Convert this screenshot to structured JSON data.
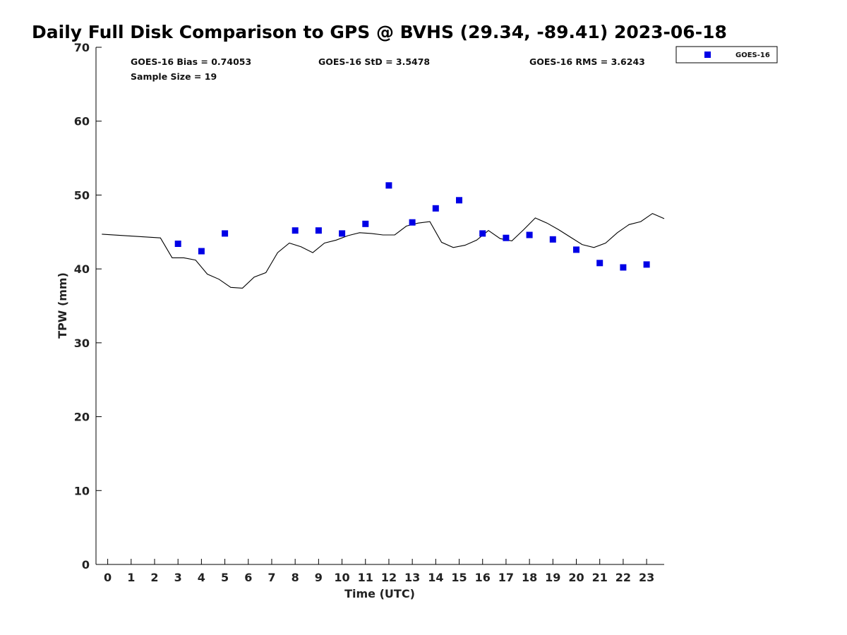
{
  "chart_data": {
    "type": "scatter",
    "title": "Daily Full Disk Comparison to GPS @ BVHS (29.34, -89.41) 2023-06-18",
    "xlabel": "Time (UTC)",
    "ylabel": "TPW (mm)",
    "xlim": [
      -0.5,
      23.75
    ],
    "ylim": [
      0,
      70
    ],
    "x_ticks": [
      "0",
      "1",
      "2",
      "3",
      "4",
      "5",
      "6",
      "7",
      "8",
      "9",
      "10",
      "11",
      "12",
      "13",
      "14",
      "15",
      "16",
      "17",
      "18",
      "19",
      "20",
      "21",
      "22",
      "23"
    ],
    "y_ticks": [
      "0",
      "10",
      "20",
      "30",
      "40",
      "50",
      "60",
      "70"
    ],
    "grid": false,
    "legend_position": "top-right",
    "stats": {
      "bias": "GOES-16 Bias = 0.74053",
      "std": "GOES-16 StD = 3.5478",
      "rms": "GOES-16 RMS = 3.6243",
      "sample": "Sample Size = 19"
    },
    "series": [
      {
        "name": "GOES-16",
        "kind": "scatter",
        "color": "#0000e6",
        "marker": "square",
        "x": [
          3,
          4,
          5,
          8,
          9,
          10,
          11,
          12,
          13,
          14,
          15,
          16,
          17,
          18,
          19,
          20,
          21,
          22,
          23
        ],
        "y": [
          43.4,
          42.4,
          44.8,
          45.2,
          45.2,
          44.8,
          46.1,
          51.3,
          46.3,
          48.2,
          49.3,
          44.8,
          44.2,
          44.6,
          44.0,
          42.6,
          40.8,
          40.2,
          40.6
        ]
      },
      {
        "kind": "line",
        "color": "#000000",
        "x": [
          -0.25,
          2.25,
          2.75,
          3.25,
          3.75,
          4.25,
          4.75,
          5.25,
          5.75,
          6.25,
          6.75,
          7.25,
          7.75,
          8.25,
          8.75,
          9.25,
          9.75,
          10.25,
          10.75,
          11.25,
          11.75,
          12.25,
          12.75,
          13.25,
          13.75,
          14.25,
          14.75,
          15.25,
          15.75,
          16.25,
          16.75,
          17.25,
          17.75,
          18.25,
          18.75,
          19.25,
          19.75,
          20.25,
          20.75,
          21.25,
          21.75,
          22.25,
          22.75,
          23.25,
          23.75
        ],
        "y": [
          44.7,
          44.2,
          41.5,
          41.5,
          41.2,
          39.3,
          38.6,
          37.5,
          37.4,
          38.9,
          39.5,
          42.2,
          43.5,
          43.0,
          42.2,
          43.5,
          43.9,
          44.5,
          44.9,
          44.8,
          44.6,
          44.6,
          45.8,
          46.2,
          46.4,
          43.6,
          42.9,
          43.2,
          43.9,
          45.2,
          44.1,
          43.8,
          45.3,
          46.9,
          46.2,
          45.3,
          44.3,
          43.3,
          42.9,
          43.5,
          44.9,
          46.0,
          46.4,
          47.5,
          46.8
        ]
      }
    ]
  }
}
